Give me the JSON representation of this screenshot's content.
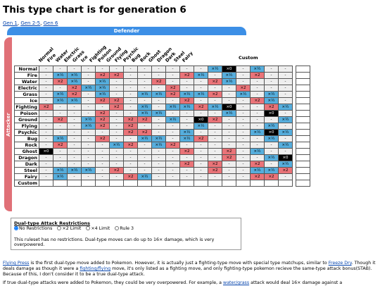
{
  "title": "This type chart is for generation 6",
  "gen_links": [
    "Gen 1",
    "Gen 2-5",
    "Gen 6"
  ],
  "defender_label": "Defender",
  "attacker_label": "Attacker",
  "custom_label": "Custom",
  "types": [
    "Normal",
    "Fire",
    "Water",
    "Electric",
    "Grass",
    "Ice",
    "Fighting",
    "Poison",
    "Ground",
    "Flying",
    "Psychic",
    "Bug",
    "Rock",
    "Ghost",
    "Dragon",
    "Dark",
    "Steel",
    "Fairy"
  ],
  "symbols": {
    "1": "-",
    "h": "×½",
    "2": "×2",
    "0": "×0"
  },
  "colors": {
    "neutral": "#eeeeee",
    "half": "#56aedd",
    "double": "#ea7378",
    "immune": "#000000"
  },
  "matrix": [
    "111111111111h01h11",
    "1hh12211112h1h1211",
    "12h1h11121112h1111",
    "112hh1111211112111",
    "1h21h11hh2hh21h1h1",
    "1hh1221111211112h1",
    "2111121h1hh2h0112h",
    "1111211hh1111h1101",
    "121h21221h1021111h",
    "111h2121111h1111h1",
    "1111112211h1111h0h",
    "1h11211hh1h21111h1",
    "12111h21h21111111h",
    "011111111121121h11",
    "1111111111111211h0",
    "11111111112121121h",
    "1hhh12111111211hh2",
    "1h11112h1111111221"
  ],
  "custom_row_label": "Custom",
  "restrictions": {
    "title": "Dual-type Attack Restrictions",
    "options": [
      "No Restrictions",
      "×2 Limit",
      "×4 Limit",
      "Rule 3"
    ],
    "selected": 0,
    "message": "This ruleset has no restrictions. Dual-type moves can do up to 16× damage, which is very overpowered."
  },
  "para1": {
    "link1": "Flying Press",
    "t1": " is the first dual-type move added to Pokemon. However, it is actually just a fighting-type move with special type matchups, similar to ",
    "link2": "Freeze Dry",
    "t2": ". Though it deals damage as though it were a ",
    "link3": "fighting/flying",
    "t3": " move, it's only listed as a fighting move, and only fighting-type pokemon recieve the same-type attack bonus(STAB). Because of this, I don't consider it to be a true dual-type attack."
  },
  "para2": {
    "t1": "If true dual-type attacks were added to Pokemon, they could be very overpowered. For example, a ",
    "link1": "water/grass",
    "t2": " attack would deal 16× damage against a"
  }
}
